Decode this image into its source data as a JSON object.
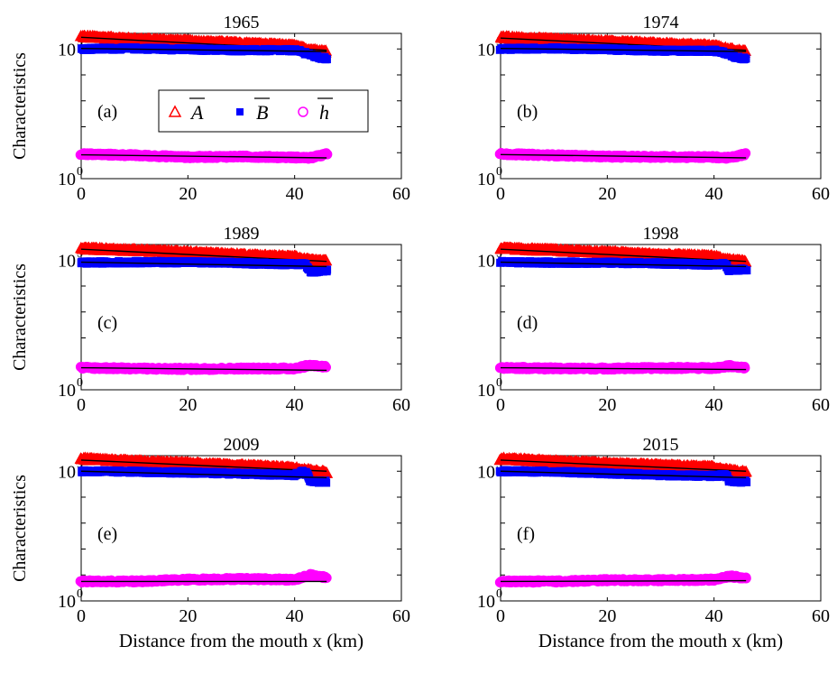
{
  "figure": {
    "xlabel": "Distance from the mouth x (km)",
    "ylabel": "Characteristics"
  },
  "legend": {
    "items": [
      {
        "symbol": "triangle",
        "label": "A",
        "overline": true,
        "color": "#ff0000"
      },
      {
        "symbol": "square",
        "label": "B",
        "overline": true,
        "color": "#0000ff"
      },
      {
        "symbol": "circle",
        "label": "h",
        "overline": true,
        "color": "#ff00ff"
      }
    ]
  },
  "chart_data": [
    {
      "type": "scatter",
      "title": "1965",
      "panel_label": "(a)",
      "xlim": [
        0,
        60
      ],
      "ylim_log10": [
        0,
        5.6
      ],
      "xticks": [
        0,
        20,
        40,
        60
      ],
      "yticks_log10": [
        0,
        5
      ],
      "series": [
        {
          "name": "A",
          "marker": "triangle",
          "color": "#ff0000",
          "x": [
            0,
            10,
            20,
            30,
            40,
            42,
            44,
            46
          ],
          "log10_y": [
            5.48,
            5.38,
            5.3,
            5.22,
            5.12,
            5.0,
            4.95,
            4.9
          ],
          "fit_log10": [
            5.45,
            4.95
          ]
        },
        {
          "name": "B",
          "marker": "square",
          "color": "#0000ff",
          "x": [
            0,
            10,
            20,
            30,
            40,
            42,
            44,
            46
          ],
          "log10_y": [
            5.0,
            5.02,
            4.98,
            4.95,
            4.95,
            4.85,
            4.7,
            4.62
          ],
          "fit_log10": [
            5.02,
            4.9
          ]
        },
        {
          "name": "h",
          "marker": "circle",
          "color": "#ff00ff",
          "x": [
            0,
            10,
            20,
            30,
            40,
            43,
            46
          ],
          "log10_y": [
            0.95,
            0.9,
            0.83,
            0.85,
            0.82,
            0.8,
            0.95
          ],
          "fit_log10": [
            0.92,
            0.8
          ]
        }
      ]
    },
    {
      "type": "scatter",
      "title": "1974",
      "panel_label": "(b)",
      "xlim": [
        0,
        60
      ],
      "ylim_log10": [
        0,
        5.6
      ],
      "xticks": [
        0,
        20,
        40,
        60
      ],
      "yticks_log10": [
        0,
        5
      ],
      "series": [
        {
          "name": "A",
          "marker": "triangle",
          "color": "#ff0000",
          "x": [
            0,
            10,
            20,
            30,
            40,
            42,
            44,
            46
          ],
          "log10_y": [
            5.45,
            5.36,
            5.28,
            5.2,
            5.12,
            5.02,
            4.95,
            4.9
          ],
          "fit_log10": [
            5.42,
            4.95
          ]
        },
        {
          "name": "B",
          "marker": "square",
          "color": "#0000ff",
          "x": [
            0,
            10,
            20,
            30,
            40,
            42,
            44,
            46
          ],
          "log10_y": [
            5.0,
            5.02,
            4.98,
            4.93,
            4.93,
            4.85,
            4.7,
            4.62
          ],
          "fit_log10": [
            5.02,
            4.9
          ]
        },
        {
          "name": "h",
          "marker": "circle",
          "color": "#ff00ff",
          "x": [
            0,
            10,
            20,
            30,
            40,
            43,
            46
          ],
          "log10_y": [
            0.95,
            0.9,
            0.85,
            0.84,
            0.83,
            0.8,
            0.95
          ],
          "fit_log10": [
            0.93,
            0.8
          ]
        }
      ]
    },
    {
      "type": "scatter",
      "title": "1989",
      "panel_label": "(c)",
      "xlim": [
        0,
        60
      ],
      "ylim_log10": [
        0,
        5.6
      ],
      "xticks": [
        0,
        20,
        40,
        60
      ],
      "yticks_log10": [
        0,
        5
      ],
      "series": [
        {
          "name": "A",
          "marker": "triangle",
          "color": "#ff0000",
          "x": [
            0,
            10,
            20,
            30,
            40,
            42,
            44,
            46
          ],
          "log10_y": [
            5.45,
            5.38,
            5.3,
            5.2,
            5.12,
            5.02,
            4.98,
            4.95
          ],
          "fit_log10": [
            5.42,
            4.95
          ]
        },
        {
          "name": "B",
          "marker": "square",
          "color": "#0000ff",
          "x": [
            0,
            10,
            20,
            30,
            40,
            42,
            43,
            46
          ],
          "log10_y": [
            4.9,
            4.92,
            4.92,
            4.88,
            4.84,
            4.85,
            4.55,
            4.6
          ],
          "fit_log10": [
            4.92,
            4.75
          ]
        },
        {
          "name": "h",
          "marker": "circle",
          "color": "#ff00ff",
          "x": [
            0,
            10,
            20,
            30,
            40,
            43,
            46
          ],
          "log10_y": [
            0.85,
            0.82,
            0.8,
            0.82,
            0.82,
            0.95,
            0.88
          ],
          "fit_log10": [
            0.85,
            0.75
          ]
        }
      ]
    },
    {
      "type": "scatter",
      "title": "1998",
      "panel_label": "(d)",
      "xlim": [
        0,
        60
      ],
      "ylim_log10": [
        0,
        5.6
      ],
      "xticks": [
        0,
        20,
        40,
        60
      ],
      "yticks_log10": [
        0,
        5
      ],
      "series": [
        {
          "name": "A",
          "marker": "triangle",
          "color": "#ff0000",
          "x": [
            0,
            10,
            20,
            30,
            40,
            42,
            44,
            46
          ],
          "log10_y": [
            5.45,
            5.38,
            5.3,
            5.2,
            5.15,
            5.02,
            4.98,
            4.95
          ],
          "fit_log10": [
            5.42,
            4.95
          ]
        },
        {
          "name": "B",
          "marker": "square",
          "color": "#0000ff",
          "x": [
            0,
            10,
            20,
            30,
            40,
            42,
            43,
            46
          ],
          "log10_y": [
            4.92,
            4.9,
            4.9,
            4.87,
            4.82,
            4.85,
            4.6,
            4.65
          ],
          "fit_log10": [
            4.92,
            4.75
          ]
        },
        {
          "name": "h",
          "marker": "circle",
          "color": "#ff00ff",
          "x": [
            0,
            10,
            20,
            30,
            40,
            43,
            46
          ],
          "log10_y": [
            0.85,
            0.82,
            0.82,
            0.84,
            0.84,
            0.92,
            0.85
          ],
          "fit_log10": [
            0.85,
            0.78
          ]
        }
      ]
    },
    {
      "type": "scatter",
      "title": "2009",
      "panel_label": "(e)",
      "xlim": [
        0,
        60
      ],
      "ylim_log10": [
        0,
        5.6
      ],
      "xticks": [
        0,
        20,
        40,
        60
      ],
      "yticks_log10": [
        0,
        5
      ],
      "series": [
        {
          "name": "A",
          "marker": "triangle",
          "color": "#ff0000",
          "x": [
            0,
            10,
            20,
            30,
            40,
            42,
            44,
            46
          ],
          "log10_y": [
            5.48,
            5.38,
            5.3,
            5.22,
            5.12,
            5.05,
            5.0,
            4.95
          ],
          "fit_log10": [
            5.43,
            5.0
          ]
        },
        {
          "name": "B",
          "marker": "square",
          "color": "#0000ff",
          "x": [
            0,
            10,
            20,
            30,
            40,
            42,
            43,
            46
          ],
          "log10_y": [
            5.0,
            4.98,
            4.95,
            4.9,
            4.85,
            5.0,
            4.6,
            4.6
          ],
          "fit_log10": [
            5.0,
            4.75
          ]
        },
        {
          "name": "h",
          "marker": "circle",
          "color": "#ff00ff",
          "x": [
            0,
            10,
            20,
            30,
            40,
            43,
            46
          ],
          "log10_y": [
            0.75,
            0.75,
            0.82,
            0.85,
            0.82,
            1.0,
            0.9
          ],
          "fit_log10": [
            0.75,
            0.75
          ]
        }
      ]
    },
    {
      "type": "scatter",
      "title": "2015",
      "panel_label": "(f)",
      "xlim": [
        0,
        60
      ],
      "ylim_log10": [
        0,
        5.6
      ],
      "xticks": [
        0,
        20,
        40,
        60
      ],
      "yticks_log10": [
        0,
        5
      ],
      "series": [
        {
          "name": "A",
          "marker": "triangle",
          "color": "#ff0000",
          "x": [
            0,
            10,
            20,
            30,
            40,
            42,
            44,
            46
          ],
          "log10_y": [
            5.48,
            5.38,
            5.3,
            5.22,
            5.15,
            5.05,
            5.0,
            4.95
          ],
          "fit_log10": [
            5.43,
            5.0
          ]
        },
        {
          "name": "B",
          "marker": "square",
          "color": "#0000ff",
          "x": [
            0,
            10,
            20,
            30,
            40,
            42,
            43,
            46
          ],
          "log10_y": [
            5.0,
            4.98,
            4.92,
            4.85,
            4.82,
            4.85,
            4.6,
            4.6
          ],
          "fit_log10": [
            5.0,
            4.75
          ]
        },
        {
          "name": "h",
          "marker": "circle",
          "color": "#ff00ff",
          "x": [
            0,
            10,
            20,
            30,
            40,
            43,
            46
          ],
          "log10_y": [
            0.75,
            0.75,
            0.8,
            0.8,
            0.82,
            0.95,
            0.88
          ],
          "fit_log10": [
            0.75,
            0.78
          ]
        }
      ]
    }
  ]
}
